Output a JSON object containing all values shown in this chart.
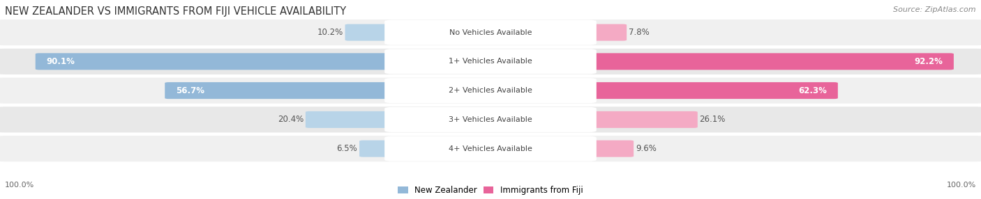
{
  "title": "NEW ZEALANDER VS IMMIGRANTS FROM FIJI VEHICLE AVAILABILITY",
  "source": "Source: ZipAtlas.com",
  "categories": [
    "No Vehicles Available",
    "1+ Vehicles Available",
    "2+ Vehicles Available",
    "3+ Vehicles Available",
    "4+ Vehicles Available"
  ],
  "nz_values": [
    10.2,
    90.1,
    56.7,
    20.4,
    6.5
  ],
  "fiji_values": [
    7.8,
    92.2,
    62.3,
    26.1,
    9.6
  ],
  "nz_color": "#93b8d8",
  "fiji_color_large": "#e8649a",
  "fiji_color_small": "#f4aac4",
  "nz_color_small": "#b8d4e8",
  "bg_color": "#ffffff",
  "row_bg_even": "#f0f0f0",
  "row_bg_odd": "#e8e8e8",
  "max_value": 100.0,
  "title_fontsize": 10.5,
  "label_fontsize": 8.5,
  "cat_fontsize": 8.0,
  "legend_fontsize": 8.5,
  "footer_fontsize": 8.0,
  "large_threshold": 30.0
}
